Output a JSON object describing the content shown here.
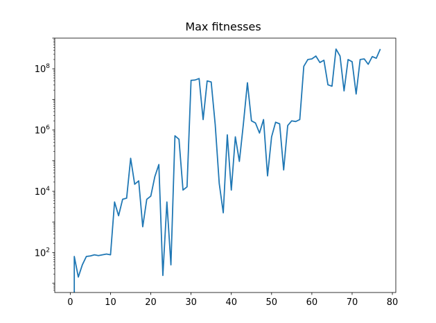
{
  "chart_data": {
    "type": "line",
    "title": "Max fitnesses",
    "xlabel": "",
    "ylabel": "",
    "yscale": "log",
    "grid": false,
    "xlim": [
      -3.85,
      80.85
    ],
    "ylim": [
      5,
      1000000000
    ],
    "x_ticks": [
      0,
      10,
      20,
      30,
      40,
      50,
      60,
      70,
      80
    ],
    "y_ticks": [
      {
        "value": 100,
        "base": "10",
        "exp": "2"
      },
      {
        "value": 10000,
        "base": "10",
        "exp": "4"
      },
      {
        "value": 1000000,
        "base": "10",
        "exp": "6"
      },
      {
        "value": 100000000,
        "base": "10",
        "exp": "8"
      }
    ],
    "series": [
      {
        "color": "#1f77b4",
        "x": [
          1,
          1,
          2,
          3,
          4,
          5,
          6,
          7,
          8,
          9,
          10,
          11,
          12,
          13,
          14,
          15,
          16,
          17,
          18,
          19,
          20,
          21,
          22,
          23,
          24,
          25,
          26,
          27,
          28,
          29,
          30,
          31,
          32,
          33,
          34,
          35,
          36,
          37,
          38,
          39,
          40,
          41,
          42,
          43,
          44,
          45,
          46,
          47,
          48,
          49,
          50,
          51,
          52,
          53,
          54,
          55,
          56,
          57,
          58,
          59,
          60,
          61,
          62,
          63,
          64,
          65,
          66,
          67,
          68,
          69,
          70,
          71,
          72,
          73,
          74,
          75,
          76,
          77
        ],
        "y": [
          5,
          75,
          16,
          40,
          75,
          78,
          85,
          80,
          85,
          90,
          85,
          4500,
          1600,
          5500,
          6000,
          120000,
          17000,
          22000,
          700,
          5500,
          7000,
          30000,
          75000,
          18,
          4500,
          40,
          650000,
          500000,
          11000,
          14000,
          42000000,
          43000000,
          48000000,
          2200000,
          40000000,
          37000000,
          1500000,
          18000,
          2000,
          700000,
          11000,
          600000,
          95000,
          1600000,
          35000000,
          2000000,
          1700000,
          800000,
          2200000,
          32000,
          600000,
          1800000,
          1600000,
          50000,
          1400000,
          2000000,
          1900000,
          2200000,
          120000000,
          200000000,
          210000000,
          260000000,
          160000000,
          190000000,
          30000000,
          27000000,
          440000000,
          260000000,
          19000000,
          200000000,
          170000000,
          15000000,
          200000000,
          210000000,
          140000000,
          250000000,
          220000000,
          440000000
        ]
      }
    ]
  }
}
